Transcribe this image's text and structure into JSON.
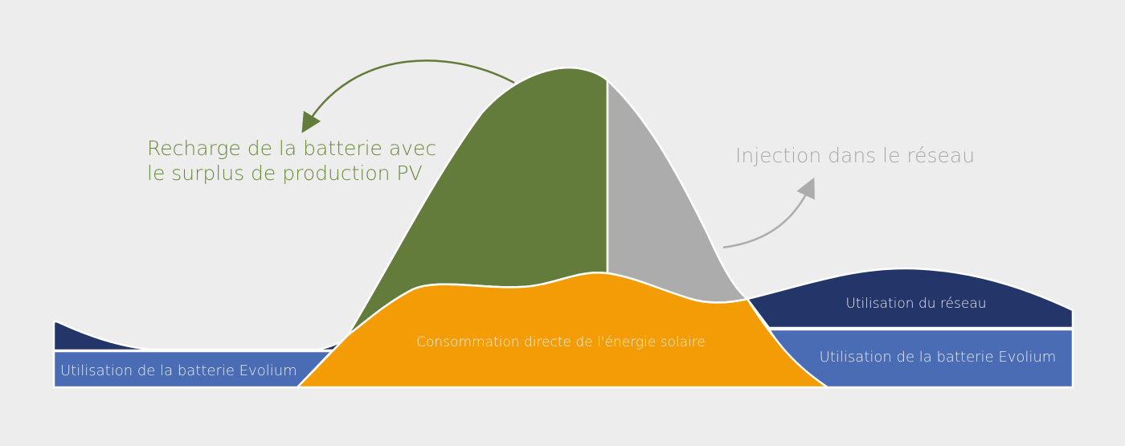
{
  "labels": {
    "recharge_line1": "Recharge de la batterie avec",
    "recharge_line2": "le surplus de production PV",
    "injection": "Injection dans le réseau",
    "grid_use": "Utilisation du réseau",
    "battery_left": "Utilisation de la batterie Evolium",
    "battery_right": "Utilisation de la batterie Evolium",
    "direct_consumption": "Consommation directe de l'énergie solaire"
  },
  "colors": {
    "background": "#ededed",
    "navy": "#24356a",
    "blue": "#4a6cb4",
    "orange": "#f39c05",
    "green": "#647c3b",
    "gray": "#acacac",
    "green_text": "#6b8a3c",
    "gray_text": "#a8a8a8"
  }
}
